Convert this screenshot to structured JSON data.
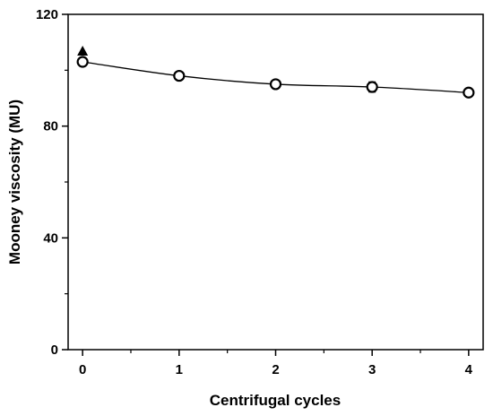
{
  "chart_data": {
    "type": "line",
    "xlabel": "Centrifugal cycles",
    "ylabel": "Mooney viscosity (MU)",
    "xlim": [
      -0.15,
      4.15
    ],
    "ylim": [
      0,
      120
    ],
    "xticks": [
      0,
      1,
      2,
      3,
      4
    ],
    "xminor_ticks": [
      0.5,
      1.5,
      2.5,
      3.5
    ],
    "yticks": [
      0,
      40,
      80,
      120
    ],
    "yminor_ticks": [
      20,
      60,
      100
    ],
    "grid": false,
    "legend": "none",
    "series": [
      {
        "marker": "open-circle",
        "line": "smooth",
        "color": "#000000",
        "x": [
          0,
          1,
          2,
          3,
          4
        ],
        "y": [
          103,
          98,
          95,
          94,
          92
        ],
        "error": [
          1.5,
          1.2,
          1.0,
          1.8,
          1.2
        ]
      },
      {
        "marker": "filled-triangle",
        "line": "none",
        "color": "#000000",
        "x": [
          0
        ],
        "y": [
          107
        ]
      }
    ]
  }
}
